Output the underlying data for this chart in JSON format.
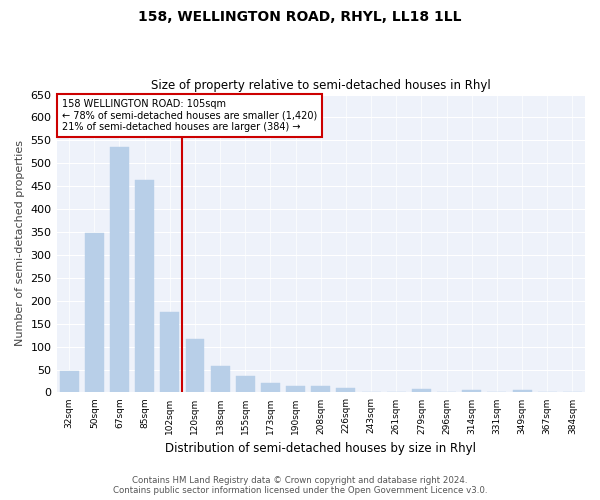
{
  "title": "158, WELLINGTON ROAD, RHYL, LL18 1LL",
  "subtitle": "Size of property relative to semi-detached houses in Rhyl",
  "xlabel": "Distribution of semi-detached houses by size in Rhyl",
  "ylabel": "Number of semi-detached properties",
  "categories": [
    "32sqm",
    "50sqm",
    "67sqm",
    "85sqm",
    "102sqm",
    "120sqm",
    "138sqm",
    "155sqm",
    "173sqm",
    "190sqm",
    "208sqm",
    "226sqm",
    "243sqm",
    "261sqm",
    "279sqm",
    "296sqm",
    "314sqm",
    "331sqm",
    "349sqm",
    "367sqm",
    "384sqm"
  ],
  "values": [
    46,
    348,
    535,
    464,
    175,
    116,
    58,
    35,
    20,
    15,
    15,
    10,
    0,
    0,
    8,
    0,
    5,
    0,
    5,
    0,
    0
  ],
  "bar_color": "#b8cfe8",
  "annotation_text_line1": "158 WELLINGTON ROAD: 105sqm",
  "annotation_text_line2": "← 78% of semi-detached houses are smaller (1,420)",
  "annotation_text_line3": "21% of semi-detached houses are larger (384) →",
  "red_line_color": "#cc0000",
  "box_color": "#cc0000",
  "ylim": [
    0,
    650
  ],
  "yticks": [
    0,
    50,
    100,
    150,
    200,
    250,
    300,
    350,
    400,
    450,
    500,
    550,
    600,
    650
  ],
  "background_color": "#eef2fa",
  "footer_line1": "Contains HM Land Registry data © Crown copyright and database right 2024.",
  "footer_line2": "Contains public sector information licensed under the Open Government Licence v3.0."
}
